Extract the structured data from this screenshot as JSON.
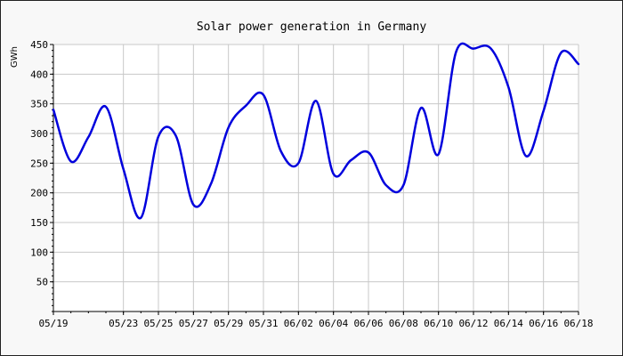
{
  "chart_data": {
    "type": "line",
    "title": "Solar power generation in Germany",
    "xlabel": "",
    "ylabel": "GWh",
    "ylim": [
      0,
      450
    ],
    "y_ticks": [
      50,
      100,
      150,
      200,
      250,
      300,
      350,
      400,
      450
    ],
    "x_ticks": [
      "05/19",
      "05/23",
      "05/25",
      "05/27",
      "05/29",
      "05/31",
      "06/02",
      "06/04",
      "06/06",
      "06/08",
      "06/10",
      "06/12",
      "06/14",
      "06/16",
      "06/18"
    ],
    "grid": true,
    "legend": "none",
    "series_color": "#0000dd",
    "x": [
      "05/19",
      "05/20",
      "05/21",
      "05/22",
      "05/23",
      "05/24",
      "05/25",
      "05/26",
      "05/27",
      "05/28",
      "05/29",
      "05/30",
      "05/31",
      "06/01",
      "06/02",
      "06/03",
      "06/04",
      "06/05",
      "06/06",
      "06/07",
      "06/08",
      "06/09",
      "06/10",
      "06/11",
      "06/12",
      "06/13",
      "06/14",
      "06/15",
      "06/16",
      "06/17",
      "06/18"
    ],
    "series": [
      {
        "values": [
          340,
          253,
          294,
          345,
          240,
          158,
          295,
          296,
          180,
          215,
          310,
          347,
          365,
          270,
          250,
          355,
          232,
          255,
          268,
          213,
          213,
          343,
          265,
          437,
          443,
          443,
          378,
          262,
          338,
          436,
          417
        ]
      }
    ]
  }
}
